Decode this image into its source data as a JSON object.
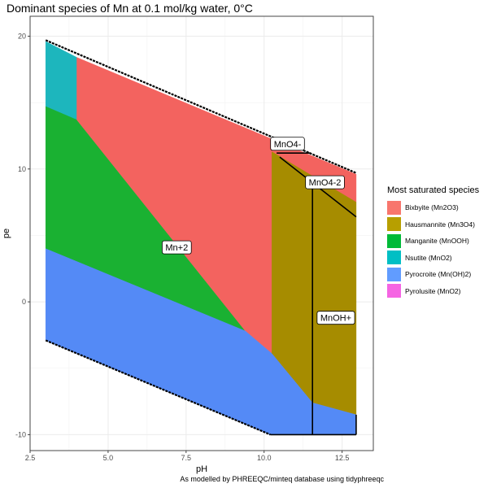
{
  "title": "Dominant species of Mn at 0.1 mol/kg water, 0°C",
  "caption": "As modelled by PHREEQC/minteq database using tidyphreeqc",
  "chart_data": {
    "type": "area",
    "xlabel": "pH",
    "ylabel": "pe",
    "xlim": [
      2.5,
      13.5
    ],
    "ylim": [
      -11.2,
      21.5
    ],
    "xticks": [
      2.5,
      5.0,
      7.5,
      10.0,
      12.5
    ],
    "xtick_labels": [
      "2.5",
      "5.0",
      "7.5",
      "10.0",
      "12.5"
    ],
    "yticks": [
      -10,
      0,
      10,
      20
    ],
    "ytick_labels": [
      "-10",
      "0",
      "10",
      "20"
    ],
    "grid": true,
    "legend": {
      "title": "Most saturated species",
      "position": "right",
      "entries": [
        {
          "label": "Bixbyite (Mn2O3)",
          "color": "#F8766D"
        },
        {
          "label": "Hausmannite (Mn3O4)",
          "color": "#B79F00"
        },
        {
          "label": "Manganite (MnOOH)",
          "color": "#00BA38"
        },
        {
          "label": "Nsutite (MnO2)",
          "color": "#00BFC4"
        },
        {
          "label": "Pyrocroite (Mn(OH)2)",
          "color": "#619CFF"
        },
        {
          "label": "Pyrolusite (MnO2)",
          "color": "#F564E3"
        }
      ]
    },
    "regions": [
      {
        "mineral": "Nsutite (MnO2)",
        "color": "#1DB6BD",
        "points": [
          [
            3.0,
            19.6
          ],
          [
            4.0,
            18.4
          ],
          [
            4.0,
            13.7
          ],
          [
            3.0,
            14.7
          ]
        ]
      },
      {
        "mineral": "Manganite (MnOOH)",
        "color": "#1AB132",
        "points": [
          [
            3.0,
            14.7
          ],
          [
            4.0,
            13.7
          ],
          [
            9.4,
            -2.2
          ],
          [
            3.0,
            4.0
          ]
        ]
      },
      {
        "mineral": "Bixbyite (Mn2O3)",
        "color": "#F3635F",
        "points": [
          [
            4.0,
            18.4
          ],
          [
            12.95,
            9.6
          ],
          [
            12.95,
            7.5
          ],
          [
            10.25,
            11.3
          ],
          [
            10.25,
            -3.9
          ],
          [
            9.4,
            -2.2
          ],
          [
            4.0,
            13.7
          ]
        ]
      },
      {
        "mineral": "Hausmannite (Mn3O4)",
        "color": "#A68C00",
        "points": [
          [
            10.25,
            11.3
          ],
          [
            12.95,
            7.5
          ],
          [
            12.95,
            -8.5
          ],
          [
            11.55,
            -7.6
          ],
          [
            10.25,
            -3.9
          ]
        ]
      },
      {
        "mineral": "Pyrocroite (Mn(OH)2)",
        "color": "#548AF6",
        "points": [
          [
            3.0,
            4.0
          ],
          [
            9.4,
            -2.2
          ],
          [
            10.25,
            -3.9
          ],
          [
            11.55,
            -7.6
          ],
          [
            12.95,
            -8.5
          ],
          [
            12.95,
            -10.0
          ],
          [
            10.2,
            -10.0
          ],
          [
            3.0,
            -2.9
          ]
        ]
      }
    ],
    "boundaries": [
      {
        "name": "upper-stability-edge",
        "points": [
          [
            3.0,
            19.7
          ],
          [
            12.95,
            9.7
          ]
        ]
      },
      {
        "name": "lower-stability-edge",
        "points": [
          [
            3.0,
            -2.9
          ],
          [
            10.2,
            -10.0
          ]
        ]
      },
      {
        "name": "MnO4- boundary",
        "points": [
          [
            10.4,
            11.2
          ],
          [
            11.5,
            11.2
          ]
        ]
      },
      {
        "name": "MnO4-2 boundary",
        "points": [
          [
            10.5,
            10.9
          ],
          [
            12.95,
            6.4
          ]
        ]
      },
      {
        "name": "MnOH+ vertical",
        "points": [
          [
            11.55,
            8.6
          ],
          [
            11.55,
            -10.0
          ]
        ]
      },
      {
        "name": "MnOH+ right edge",
        "points": [
          [
            12.95,
            -8.5
          ],
          [
            12.95,
            -10.0
          ]
        ]
      },
      {
        "name": "MnOH+ bottom edge",
        "points": [
          [
            10.2,
            -10.0
          ],
          [
            12.95,
            -10.0
          ]
        ]
      }
    ],
    "annotations": [
      {
        "text": "Mn+2",
        "x": 7.2,
        "y": 4.1
      },
      {
        "text": "MnO4-",
        "x": 10.75,
        "y": 11.9
      },
      {
        "text": "MnO4-2",
        "x": 11.95,
        "y": 9.0
      },
      {
        "text": "MnOH+",
        "x": 12.3,
        "y": -1.2
      }
    ]
  }
}
